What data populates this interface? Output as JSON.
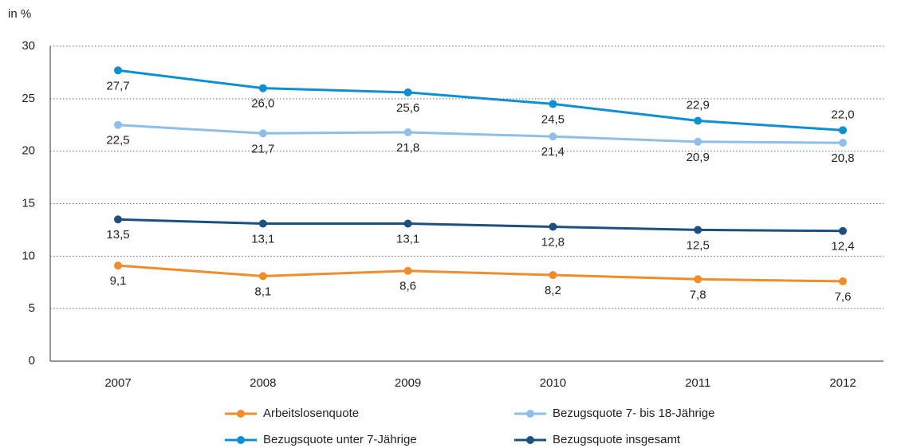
{
  "chart_data": {
    "type": "line",
    "y_axis_label": "in %",
    "categories": [
      "2007",
      "2008",
      "2009",
      "2010",
      "2011",
      "2012"
    ],
    "series": [
      {
        "name": "Arbeitslosenquote",
        "color": "#f28c28",
        "values": [
          9.1,
          8.1,
          8.6,
          8.2,
          7.8,
          7.6
        ],
        "value_labels": [
          "9,1",
          "8,1",
          "8,6",
          "8,2",
          "7,8",
          "7,6"
        ]
      },
      {
        "name": "Bezugsquote 7- bis 18-Jährige",
        "color": "#8fbfe8",
        "values": [
          22.5,
          21.7,
          21.8,
          21.4,
          20.9,
          20.8
        ],
        "value_labels": [
          "22,5",
          "21,7",
          "21,8",
          "21,4",
          "20,9",
          "20,8"
        ]
      },
      {
        "name": "Bezugsquote unter 7-Jährige",
        "color": "#0d8fd4",
        "values": [
          27.7,
          26.0,
          25.6,
          24.5,
          22.9,
          22.0
        ],
        "value_labels": [
          "27,7",
          "26,0",
          "25,6",
          "24,5",
          "22,9",
          "22,0"
        ]
      },
      {
        "name": "Bezugsquote insgesamt",
        "color": "#1d4f80",
        "values": [
          13.5,
          13.1,
          13.1,
          12.8,
          12.5,
          12.4
        ],
        "value_labels": [
          "13,5",
          "13,1",
          "13,1",
          "12,8",
          "12,5",
          "12,4"
        ]
      }
    ],
    "ylim": [
      0,
      30
    ],
    "yticks": [
      0,
      5,
      10,
      15,
      20,
      25,
      30
    ],
    "grid": true
  }
}
